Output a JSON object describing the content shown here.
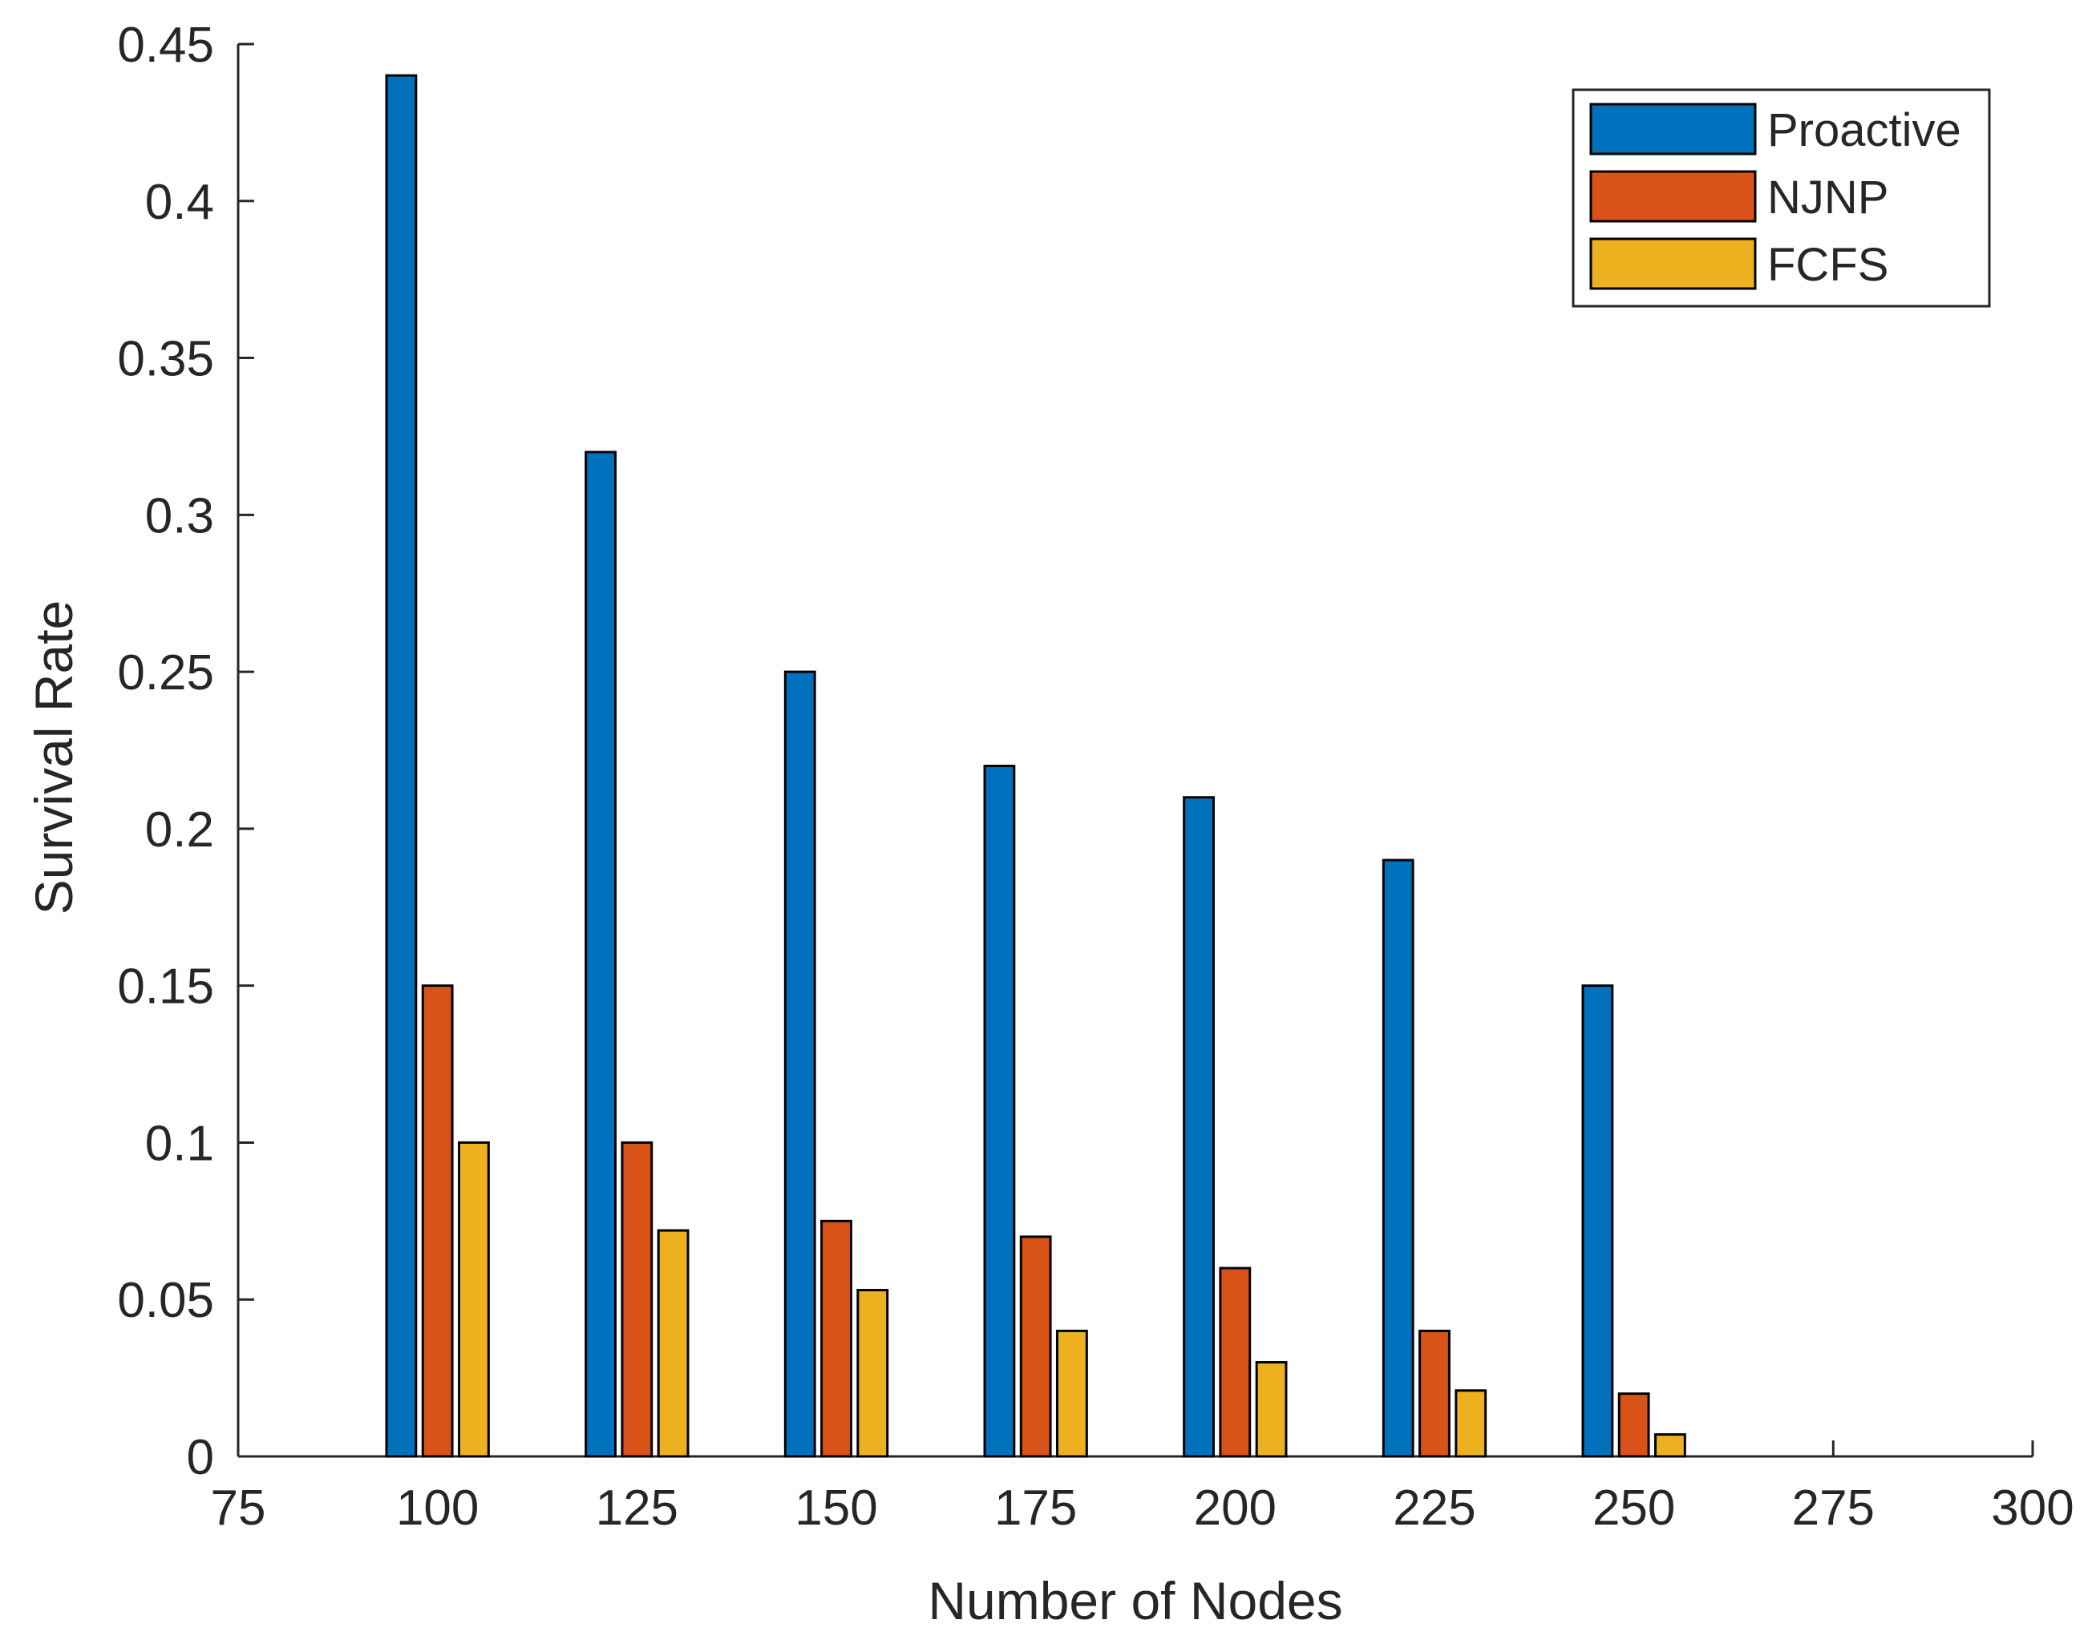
{
  "chart_data": {
    "type": "bar",
    "title": "",
    "xlabel": "Number of Nodes",
    "ylabel": "Survival Rate",
    "xlim": [
      75,
      300
    ],
    "ylim": [
      0,
      0.45
    ],
    "x_ticks": [
      "75",
      "100",
      "125",
      "150",
      "175",
      "200",
      "225",
      "250",
      "275",
      "300"
    ],
    "y_ticks": [
      "0",
      "0.05",
      "0.1",
      "0.15",
      "0.2",
      "0.25",
      "0.3",
      "0.35",
      "0.4",
      "0.45"
    ],
    "categories": [
      100,
      125,
      150,
      175,
      200,
      225,
      250
    ],
    "series": [
      {
        "name": "Proactive",
        "color": "#0072BD",
        "values": [
          0.44,
          0.32,
          0.25,
          0.22,
          0.21,
          0.19,
          0.15
        ]
      },
      {
        "name": "NJNP",
        "color": "#D95319",
        "values": [
          0.15,
          0.1,
          0.075,
          0.07,
          0.06,
          0.04,
          0.02
        ]
      },
      {
        "name": "FCFS",
        "color": "#EDB120",
        "values": [
          0.1,
          0.072,
          0.053,
          0.04,
          0.03,
          0.021,
          0.007
        ]
      }
    ],
    "grid": false,
    "legend_position": "top-right"
  }
}
